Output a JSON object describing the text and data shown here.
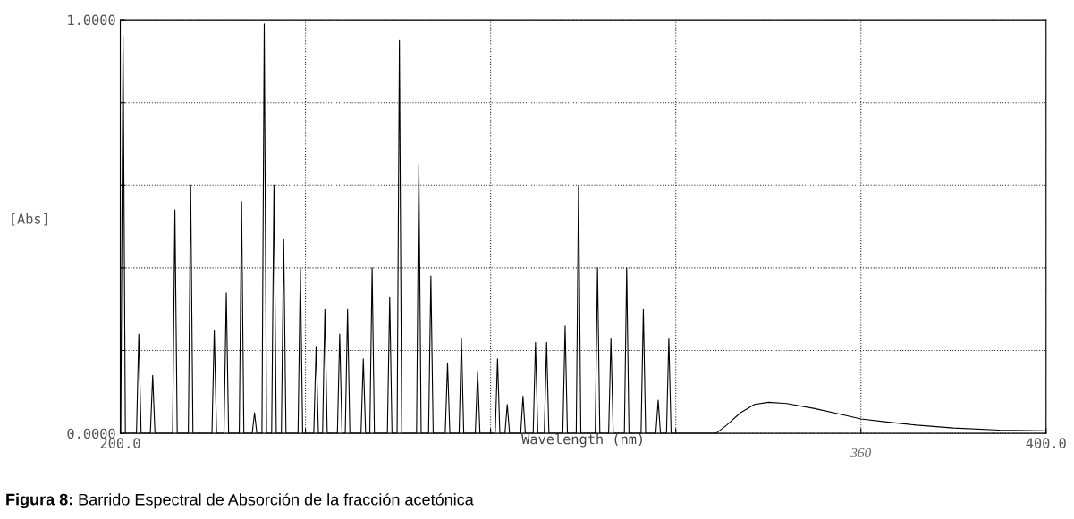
{
  "chart_data": {
    "type": "line",
    "xlabel": "Wavelength (nm)",
    "ylabel": "[Abs]",
    "xlim": [
      200,
      400
    ],
    "xticks": [
      {
        "value": 200,
        "label": "200.0"
      },
      {
        "value": 240,
        "label": null
      },
      {
        "value": 280,
        "label": null
      },
      {
        "value": 320,
        "label": null
      },
      {
        "value": 360,
        "label": null
      },
      {
        "value": 400,
        "label": "400.0"
      }
    ],
    "ylim": [
      0,
      1
    ],
    "yticks": [
      {
        "value": 0,
        "label": "0.0000"
      },
      {
        "value": 0.2,
        "label": null
      },
      {
        "value": 0.4,
        "label": null
      },
      {
        "value": 0.6,
        "label": null
      },
      {
        "value": 0.8,
        "label": null
      },
      {
        "value": 1,
        "label": "1.0000"
      }
    ],
    "grid": true,
    "marker": "none",
    "line_style": "solid",
    "series": [
      {
        "color": "#000000",
        "x": [
          200.1,
          200.6,
          201.1,
          203.5,
          204.0,
          204.5,
          206.5,
          207.0,
          207.5,
          211.3,
          211.8,
          212.3,
          214.7,
          215.2,
          215.7,
          219.8,
          220.3,
          220.8,
          222.4,
          222.9,
          223.4,
          225.7,
          226.2,
          226.7,
          228.5,
          229.0,
          229.5,
          230.6,
          231.1,
          231.6,
          232.7,
          233.2,
          233.7,
          234.8,
          235.3,
          235.8,
          238.4,
          238.9,
          239.4,
          241.8,
          242.3,
          242.8,
          243.7,
          244.2,
          244.7,
          246.9,
          247.4,
          247.9,
          248.6,
          249.1,
          249.6,
          252.0,
          252.5,
          253.0,
          253.9,
          254.4,
          254.9,
          257.7,
          258.2,
          258.7,
          259.8,
          260.3,
          260.8,
          264.0,
          264.5,
          265.0,
          266.6,
          267.1,
          267.6,
          270.2,
          270.7,
          271.2,
          273.2,
          273.7,
          274.2,
          276.7,
          277.2,
          277.7,
          281.0,
          281.5,
          282.0,
          283.1,
          283.6,
          284.1,
          286.5,
          287.0,
          287.5,
          289.2,
          289.7,
          290.2,
          291.6,
          292.1,
          292.6,
          295.6,
          296.1,
          296.6,
          298.5,
          299.0,
          299.5,
          302.6,
          303.1,
          303.6,
          305.5,
          306.0,
          306.5,
          308.9,
          309.4,
          309.9,
          312.5,
          313.0,
          313.5,
          315.7,
          316.2,
          316.7,
          318.0,
          318.5,
          319.0,
          320.2,
          328.7,
          331,
          334,
          337,
          340,
          344,
          350,
          356,
          360,
          366,
          372,
          380,
          390,
          400
        ],
        "values": [
          0,
          0.96,
          0,
          0,
          0.24,
          0,
          0,
          0.14,
          0,
          0,
          0.54,
          0,
          0,
          0.6,
          0,
          0,
          0.25,
          0,
          0,
          0.34,
          0,
          0,
          0.56,
          0,
          0,
          0.05,
          0,
          0,
          0.99,
          0,
          0,
          0.6,
          0,
          0,
          0.47,
          0,
          0,
          0.4,
          0,
          0,
          0.21,
          0,
          0,
          0.3,
          0,
          0,
          0.24,
          0,
          0,
          0.3,
          0,
          0,
          0.18,
          0,
          0,
          0.4,
          0,
          0,
          0.33,
          0,
          0,
          0.95,
          0,
          0,
          0.65,
          0,
          0,
          0.38,
          0,
          0,
          0.17,
          0,
          0,
          0.23,
          0,
          0,
          0.15,
          0,
          0,
          0.18,
          0,
          0,
          0.07,
          0,
          0,
          0.09,
          0,
          0,
          0.22,
          0,
          0,
          0.22,
          0,
          0,
          0.26,
          0,
          0,
          0.6,
          0,
          0,
          0.4,
          0,
          0,
          0.23,
          0,
          0,
          0.4,
          0,
          0,
          0.3,
          0,
          0,
          0.08,
          0,
          0,
          0.23,
          0,
          0,
          0,
          0.02,
          0.05,
          0.07,
          0.075,
          0.072,
          0.06,
          0.045,
          0.035,
          0.027,
          0.02,
          0.013,
          0.008,
          0.006
        ]
      }
    ],
    "annotations": [
      "360",
      "Figura 8: Barrido Espectral de Absorción de la fracción acetónica"
    ]
  }
}
